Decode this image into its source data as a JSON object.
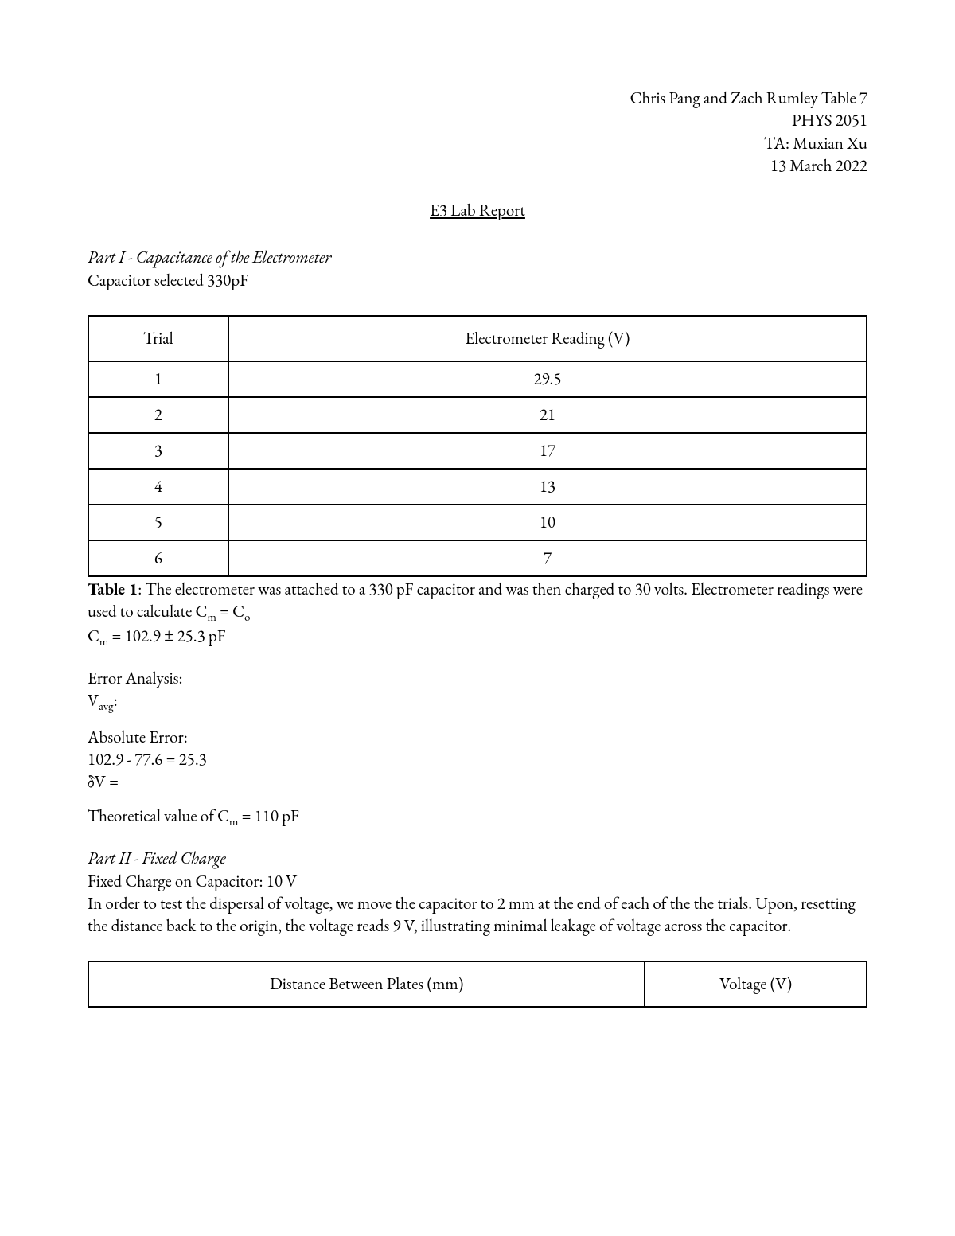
{
  "header": {
    "authors": "Chris Pang and Zach Rumley Table 7",
    "course": "PHYS 2051",
    "ta": "TA: Muxian Xu",
    "date": "13 March 2022"
  },
  "title": "E3 Lab Report",
  "part1": {
    "heading": "Part I - Capacitance of the Electrometer",
    "capacitor_line": "Capacitor selected 330pF",
    "table": {
      "columns": [
        "Trial",
        "Electrometer Reading (V)"
      ],
      "rows": [
        [
          "1",
          "29.5"
        ],
        [
          "2",
          "21"
        ],
        [
          "3",
          "17"
        ],
        [
          "4",
          "13"
        ],
        [
          "5",
          "10"
        ],
        [
          "6",
          "7"
        ]
      ]
    },
    "caption_prefix": "Table 1",
    "caption_body": ": The electrometer was attached to a 330 pF capacitor and was then charged to 30 volts. Electrometer readings were used to calculate C",
    "caption_eq_mid": " = C",
    "cm_line_prefix": "C",
    "cm_line_value": " = 102.9 ± 25.3 pF",
    "err_heading": "Error Analysis:",
    "vavg_prefix": "V",
    "vavg_suffix": ":",
    "abs_err_heading": "Absolute Error:",
    "abs_err_calc": "102.9 - 77.6 = 25.3",
    "deltaV": "δV =",
    "theoretical_prefix": "Theoretical value of C",
    "theoretical_value": " = 110  pF"
  },
  "part2": {
    "heading": "Part II - Fixed Charge",
    "fixed_charge": "Fixed Charge on Capacitor: 10 V",
    "paragraph": "In order to test the dispersal of voltage, we move the capacitor to 2 mm at the end of each of the the trials. Upon, resetting the distance back to the origin, the voltage reads 9 V, illustrating minimal leakage of voltage across the capacitor.",
    "table": {
      "columns": [
        "Distance Between Plates (mm)",
        "Voltage (V)"
      ]
    }
  },
  "subs": {
    "m": "m",
    "o": "o",
    "avg": "avg"
  }
}
